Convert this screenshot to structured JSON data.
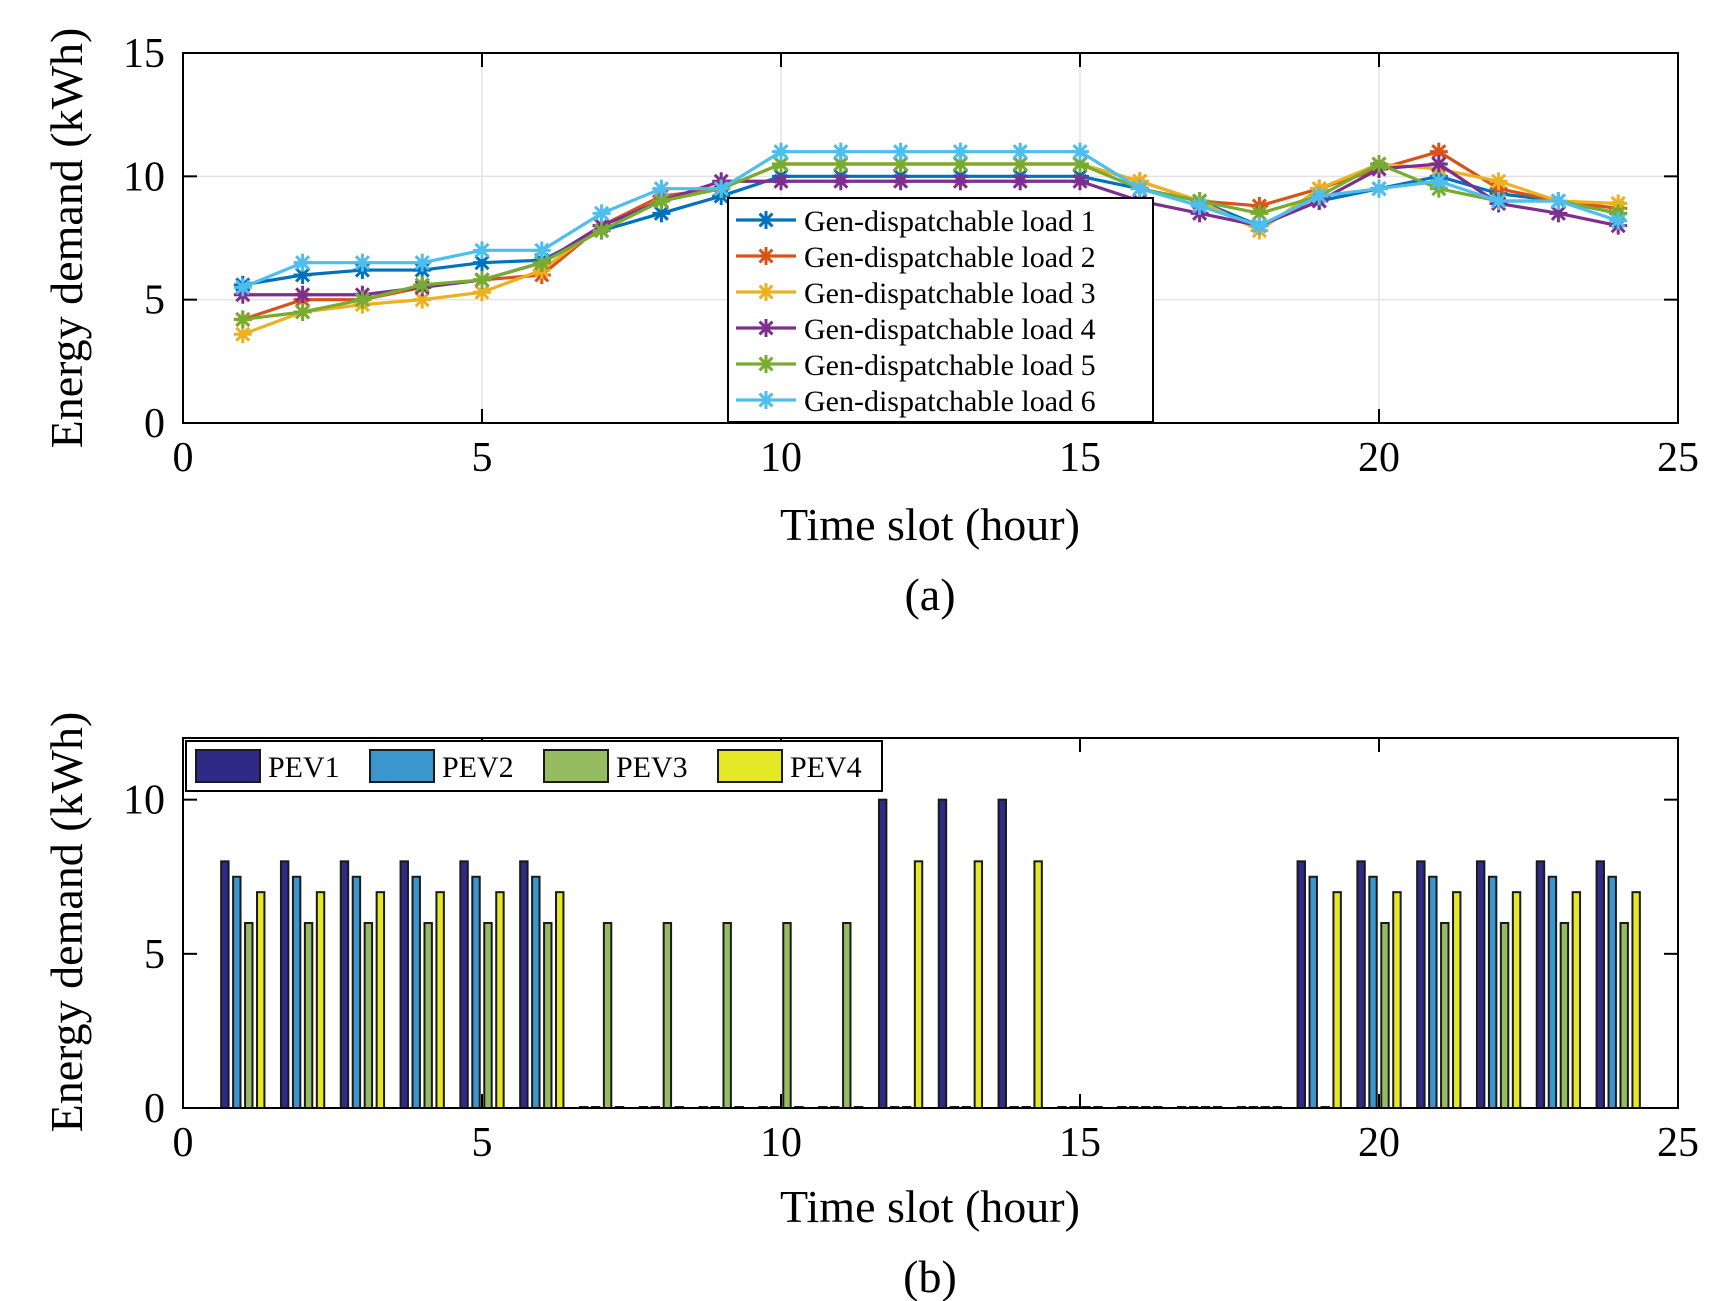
{
  "chart_data": [
    {
      "type": "line",
      "caption": "(a)",
      "xlabel": "Time slot (hour)",
      "ylabel": "Energy demand (kWh)",
      "xlim": [
        0,
        25
      ],
      "ylim": [
        0,
        15
      ],
      "xticks": [
        "0",
        "5",
        "10",
        "15",
        "20",
        "25"
      ],
      "yticks": [
        "0",
        "5",
        "10",
        "15"
      ],
      "grid": true,
      "legend_position": "center",
      "marker": "asterisk",
      "x": [
        1,
        2,
        3,
        4,
        5,
        6,
        7,
        8,
        9,
        10,
        11,
        12,
        13,
        14,
        15,
        16,
        17,
        18,
        19,
        20,
        21,
        22,
        23,
        24
      ],
      "series": [
        {
          "name": "Gen-dispatchable load 1",
          "color": "#0072BD",
          "values": [
            5.6,
            6.0,
            6.2,
            6.2,
            6.5,
            6.6,
            7.8,
            8.5,
            9.2,
            10.0,
            10.0,
            10.0,
            10.0,
            10.0,
            10.0,
            9.5,
            9.0,
            8.0,
            9.0,
            9.5,
            10.0,
            9.3,
            9.0,
            8.5
          ]
        },
        {
          "name": "Gen-dispatchable load 2",
          "color": "#D95319",
          "values": [
            4.2,
            5.0,
            5.0,
            5.5,
            5.8,
            6.0,
            8.0,
            9.2,
            9.5,
            10.5,
            10.5,
            10.5,
            10.5,
            10.5,
            10.5,
            9.8,
            9.0,
            8.8,
            9.5,
            10.3,
            11.0,
            9.5,
            9.0,
            8.7
          ]
        },
        {
          "name": "Gen-dispatchable load 3",
          "color": "#EDB120",
          "values": [
            3.6,
            4.5,
            4.8,
            5.0,
            5.3,
            6.2,
            8.0,
            9.0,
            9.5,
            10.5,
            10.5,
            10.5,
            10.5,
            10.5,
            10.5,
            9.8,
            9.0,
            7.8,
            9.5,
            10.5,
            10.3,
            9.8,
            9.0,
            8.9
          ]
        },
        {
          "name": "Gen-dispatchable load 4",
          "color": "#7E2F8E",
          "values": [
            5.2,
            5.2,
            5.2,
            5.5,
            5.8,
            6.5,
            8.0,
            9.0,
            9.8,
            9.8,
            9.8,
            9.8,
            9.8,
            9.8,
            9.8,
            9.0,
            8.5,
            8.0,
            9.0,
            10.3,
            10.5,
            8.9,
            8.5,
            8.0
          ]
        },
        {
          "name": "Gen-dispatchable load 5",
          "color": "#77AC30",
          "values": [
            4.2,
            4.5,
            5.0,
            5.6,
            5.8,
            6.5,
            7.8,
            9.0,
            9.5,
            10.5,
            10.5,
            10.5,
            10.5,
            10.5,
            10.5,
            9.5,
            9.0,
            8.5,
            9.2,
            10.5,
            9.5,
            9.0,
            9.0,
            8.5
          ]
        },
        {
          "name": "Gen-dispatchable load 6",
          "color": "#4DBEEE",
          "values": [
            5.5,
            6.5,
            6.5,
            6.5,
            7.0,
            7.0,
            8.5,
            9.5,
            9.5,
            11.0,
            11.0,
            11.0,
            11.0,
            11.0,
            11.0,
            9.5,
            8.8,
            8.0,
            9.2,
            9.5,
            9.8,
            9.0,
            9.0,
            8.2
          ]
        }
      ]
    },
    {
      "type": "bar",
      "caption": "(b)",
      "xlabel": "Time slot (hour)",
      "ylabel": "Energy demand (kWh)",
      "xlim": [
        0,
        25
      ],
      "ylim": [
        0,
        12
      ],
      "xticks": [
        "0",
        "5",
        "10",
        "15",
        "20",
        "25"
      ],
      "yticks": [
        "0",
        "5",
        "10"
      ],
      "grid": false,
      "legend_position": "top-left",
      "x": [
        1,
        2,
        3,
        4,
        5,
        6,
        7,
        8,
        9,
        10,
        11,
        12,
        13,
        14,
        15,
        16,
        17,
        18,
        19,
        20,
        21,
        22,
        23,
        24
      ],
      "series": [
        {
          "name": "PEV1",
          "color": "#2E2A86",
          "values": [
            8,
            8,
            8,
            8,
            8,
            8,
            0,
            0,
            0,
            0,
            0,
            10,
            10,
            10,
            0,
            0,
            0,
            0,
            8,
            8,
            8,
            8,
            8,
            8
          ]
        },
        {
          "name": "PEV2",
          "color": "#3A96CC",
          "values": [
            7.5,
            7.5,
            7.5,
            7.5,
            7.5,
            7.5,
            0,
            0,
            0,
            0,
            0,
            0,
            0,
            0,
            0,
            0,
            0,
            0,
            7.5,
            7.5,
            7.5,
            7.5,
            7.5,
            7.5
          ]
        },
        {
          "name": "PEV3",
          "color": "#96BC62",
          "values": [
            6,
            6,
            6,
            6,
            6,
            6,
            6,
            6,
            6,
            6,
            6,
            0,
            0,
            0,
            0,
            0,
            0,
            0,
            0,
            6,
            6,
            6,
            6,
            6
          ]
        },
        {
          "name": "PEV4",
          "color": "#E5E827",
          "values": [
            7,
            7,
            7,
            7,
            7,
            7,
            0,
            0,
            0,
            0,
            0,
            8,
            8,
            8,
            0,
            0,
            0,
            0,
            7,
            7,
            7,
            7,
            7,
            7
          ]
        }
      ]
    }
  ]
}
